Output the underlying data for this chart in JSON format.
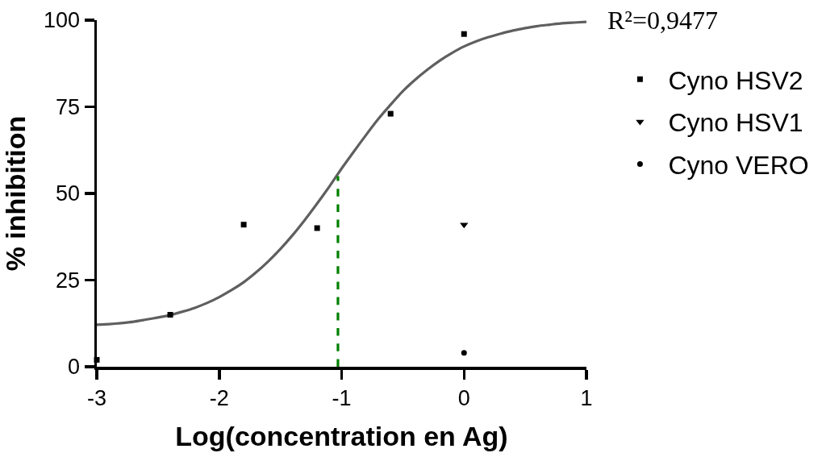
{
  "chart_data": {
    "type": "scatter",
    "xlabel": "Log(concentration en Ag)",
    "ylabel": "% inhibition",
    "annotations": [
      "R²=0,9477"
    ],
    "xlim": [
      -3,
      1
    ],
    "xticks": [
      -3,
      -2,
      -1,
      0,
      1
    ],
    "ylim": [
      0,
      100
    ],
    "yticks": [
      0,
      25,
      50,
      75,
      100
    ],
    "legend": "top right",
    "series": [
      {
        "type": "line",
        "color": "#5f5f5f",
        "marker": "none",
        "line_style": "solid",
        "x": [
          -3,
          -2.9,
          -2.8,
          -2.7,
          -2.6,
          -2.5,
          -2.4,
          -2.3,
          -2.2,
          -2.1,
          -2,
          -1.9,
          -1.8,
          -1.7,
          -1.6,
          -1.5,
          -1.4,
          -1.3,
          -1.2,
          -1.1,
          -1,
          -0.9,
          -0.8,
          -0.7,
          -0.6,
          -0.5,
          -0.4,
          -0.3,
          -0.2,
          -0.1,
          0,
          0.1,
          0.2,
          0.3,
          0.4,
          0.5,
          0.6,
          0.7,
          0.8,
          0.9,
          1
        ],
        "values": [
          12.1,
          12.3,
          12.6,
          13.0,
          13.6,
          14.2,
          14.9,
          15.9,
          17.0,
          18.4,
          20.1,
          22.1,
          24.4,
          27.2,
          30.4,
          34.0,
          38.0,
          42.4,
          47.1,
          52.0,
          57.2,
          62.1,
          66.9,
          71.5,
          75.6,
          79.5,
          82.8,
          85.7,
          88.3,
          90.5,
          92.4,
          93.9,
          95.1,
          96.1,
          97.0,
          97.7,
          98.3,
          98.7,
          99.1,
          99.3,
          99.5
        ]
      },
      {
        "type": "line",
        "color": "#008000",
        "marker": "none",
        "line_style": "dashed",
        "x": [
          -1.03,
          -1.03
        ],
        "values": [
          0,
          55
        ]
      },
      {
        "name": "Cyno HSV2",
        "color": "#000000",
        "marker": "square",
        "x": [
          -3,
          -2.4,
          -1.8,
          -1.2,
          -0.6,
          0
        ],
        "values": [
          2,
          15,
          41,
          40,
          73,
          96
        ]
      },
      {
        "name": "Cyno HSV1",
        "color": "#000000",
        "marker": "triangle",
        "x": [
          0
        ],
        "values": [
          41
        ]
      },
      {
        "name": "Cyno VERO",
        "color": "#000000",
        "marker": "circle",
        "x": [
          0
        ],
        "values": [
          4
        ]
      }
    ]
  }
}
